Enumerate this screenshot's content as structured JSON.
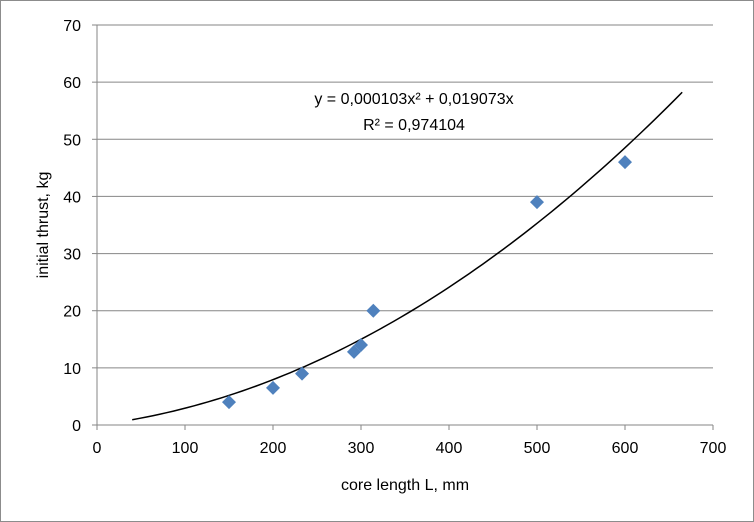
{
  "chart_data": {
    "type": "scatter",
    "xlabel": "core length  L, mm",
    "ylabel": "initial thrust, kg",
    "xlim": [
      0,
      700
    ],
    "ylim": [
      0,
      70
    ],
    "x_ticks": [
      "0",
      "100",
      "200",
      "300",
      "400",
      "500",
      "600",
      "700"
    ],
    "y_ticks": [
      "0",
      "10",
      "20",
      "30",
      "40",
      "50",
      "60",
      "70"
    ],
    "grid": "horizontal",
    "legend": "none",
    "series": [
      {
        "marker": "diamond",
        "color": "#4F81BD",
        "x": [
          150,
          200,
          233,
          292,
          300,
          314,
          500,
          600
        ],
        "y": [
          4,
          6.5,
          9,
          12.8,
          14,
          20,
          39,
          46
        ]
      }
    ],
    "trendline": {
      "type": "polynomial",
      "a": 0.000103,
      "b": 0.019073,
      "x_range": [
        40,
        665
      ],
      "color": "#000000",
      "equation_text": "y = 0,000103x² + 0,019073x",
      "r2_text": "R² = 0,974104"
    }
  }
}
